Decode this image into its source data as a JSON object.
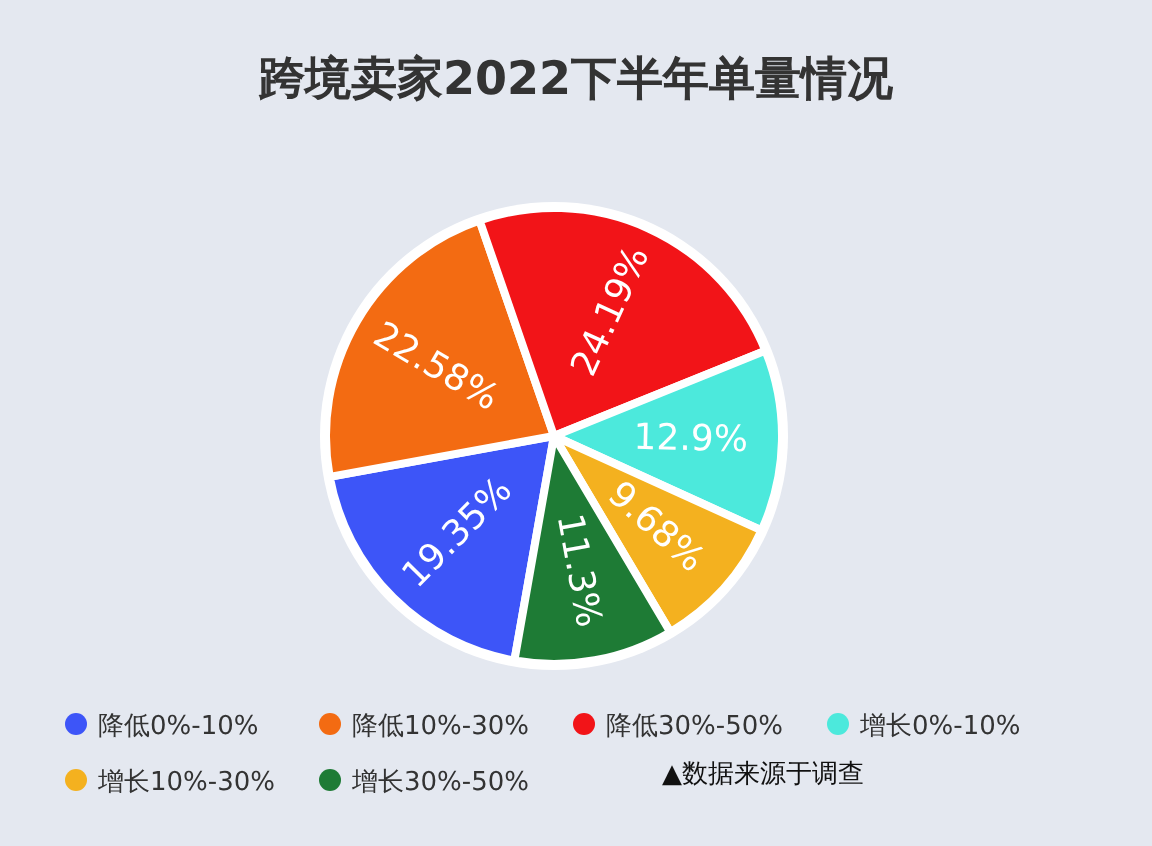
{
  "chart_data": {
    "type": "pie",
    "title": "跨境卖家2022下半年单量情况",
    "categories": [
      "降低0%-10%",
      "降低10%-30%",
      "降低30%-50%",
      "增长0%-10%",
      "增长10%-30%",
      "增长30%-50%"
    ],
    "values": [
      19.35,
      22.58,
      24.19,
      12.9,
      9.68,
      11.3
    ],
    "colors": [
      "#3d55f8",
      "#f36b12",
      "#f21418",
      "#4ce9dc",
      "#f4b11f",
      "#1e7b35"
    ],
    "value_labels": [
      "19.35%",
      "22.58%",
      "24.19%",
      "12.9%",
      "9.68%",
      "11.3%"
    ],
    "legend": "bottom",
    "annotations": [
      "▲数据来源于调查"
    ]
  }
}
